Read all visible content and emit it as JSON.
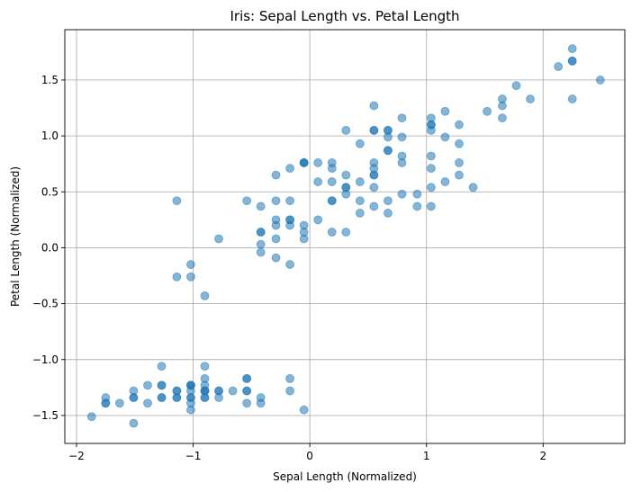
{
  "chart_data": {
    "type": "scatter",
    "title": "Iris: Sepal Length vs. Petal Length",
    "xlabel": "Sepal Length (Normalized)",
    "ylabel": "Petal Length (Normalized)",
    "xlim": [
      -2.1,
      2.7
    ],
    "ylim": [
      -1.75,
      1.95
    ],
    "x_ticks": [
      -2,
      -1,
      0,
      1,
      2
    ],
    "x_tick_labels": [
      "−2",
      "−1",
      "0",
      "1",
      "2"
    ],
    "y_ticks": [
      -1.5,
      -1.0,
      -0.5,
      0.0,
      0.5,
      1.0,
      1.5
    ],
    "y_tick_labels": [
      "−1.5",
      "−1.0",
      "−0.5",
      "0.0",
      "0.5",
      "1.0",
      "1.5"
    ],
    "grid": true,
    "marker_color": "#1f77b4",
    "marker_opacity": 0.55,
    "x": [
      -0.9,
      -1.14,
      -1.39,
      -1.51,
      -1.02,
      -0.54,
      -1.51,
      -1.02,
      -1.75,
      -1.14,
      -0.54,
      -1.27,
      -1.27,
      -1.87,
      -0.05,
      -0.17,
      -0.54,
      -0.9,
      -0.17,
      -0.9,
      -0.54,
      -0.9,
      -1.51,
      -0.9,
      -1.27,
      -1.02,
      -1.02,
      -0.78,
      -0.78,
      -1.39,
      -1.27,
      -0.54,
      -0.78,
      -0.42,
      -1.14,
      -1.02,
      -0.42,
      -1.14,
      -1.75,
      -0.9,
      -1.02,
      -1.63,
      -1.75,
      -1.02,
      -0.9,
      -1.27,
      -0.9,
      -1.51,
      -0.66,
      -1.02,
      1.4,
      0.67,
      1.28,
      -0.42,
      0.79,
      -0.17,
      0.55,
      -1.14,
      0.92,
      -0.78,
      -1.02,
      0.07,
      0.19,
      0.31,
      -0.29,
      1.04,
      -0.29,
      -0.05,
      0.43,
      -0.29,
      0.07,
      0.31,
      0.55,
      0.31,
      0.67,
      0.92,
      1.16,
      1.04,
      0.19,
      -0.17,
      -0.42,
      -0.42,
      -0.05,
      0.19,
      -0.54,
      0.19,
      1.04,
      0.55,
      -0.29,
      -0.42,
      -0.42,
      0.31,
      -0.05,
      -1.02,
      -0.29,
      -0.17,
      -0.17,
      0.43,
      -0.9,
      -0.17,
      0.55,
      -0.05,
      1.52,
      0.55,
      0.79,
      2.13,
      -1.14,
      1.77,
      1.04,
      1.65,
      0.79,
      0.67,
      1.16,
      -0.17,
      -0.05,
      0.67,
      0.79,
      2.25,
      2.25,
      0.19,
      1.28,
      -0.29,
      2.25,
      0.55,
      1.04,
      1.65,
      0.43,
      0.31,
      0.67,
      1.65,
      1.89,
      2.49,
      0.67,
      0.55,
      0.31,
      2.25,
      0.55,
      0.67,
      0.19,
      1.28,
      1.04,
      1.28,
      -0.05,
      1.16,
      1.04,
      1.04,
      0.55,
      0.79,
      0.43,
      0.07
    ],
    "y": [
      -1.34,
      -1.34,
      -1.39,
      -1.28,
      -1.34,
      -1.17,
      -1.34,
      -1.28,
      -1.34,
      -1.28,
      -1.28,
      -1.23,
      -1.34,
      -1.51,
      -1.45,
      -1.28,
      -1.39,
      -1.34,
      -1.17,
      -1.28,
      -1.17,
      -1.28,
      -1.57,
      -1.17,
      -1.06,
      -1.23,
      -1.23,
      -1.28,
      -1.34,
      -1.23,
      -1.23,
      -1.28,
      -1.28,
      -1.34,
      -1.28,
      -1.45,
      -1.39,
      -1.34,
      -1.39,
      -1.28,
      -1.39,
      -1.39,
      -1.39,
      -1.23,
      -1.06,
      -1.34,
      -1.23,
      -1.34,
      -1.28,
      -1.34,
      0.54,
      0.42,
      0.65,
      0.14,
      0.48,
      0.42,
      0.54,
      -0.26,
      0.48,
      0.08,
      -0.15,
      0.25,
      0.14,
      0.54,
      -0.09,
      0.37,
      0.42,
      0.2,
      0.42,
      0.08,
      0.59,
      0.14,
      0.65,
      0.54,
      0.31,
      0.37,
      0.59,
      0.71,
      0.42,
      -0.15,
      0.03,
      -0.04,
      0.08,
      0.76,
      0.42,
      0.42,
      0.54,
      0.37,
      0.2,
      0.14,
      0.37,
      0.48,
      0.14,
      -0.26,
      0.25,
      0.25,
      0.25,
      0.31,
      -0.43,
      0.2,
      1.27,
      0.76,
      1.22,
      1.05,
      1.16,
      1.62,
      0.42,
      1.45,
      1.16,
      1.33,
      0.76,
      0.87,
      0.99,
      0.71,
      0.76,
      0.87,
      0.99,
      1.67,
      1.78,
      0.71,
      1.1,
      0.65,
      1.67,
      0.65,
      1.1,
      1.27,
      0.59,
      0.65,
      1.05,
      1.16,
      1.33,
      1.5,
      1.05,
      0.76,
      1.05,
      1.33,
      1.05,
      0.99,
      0.59,
      0.93,
      1.05,
      0.76,
      0.76,
      1.22,
      1.1,
      0.82,
      0.71,
      0.82,
      0.93,
      0.76
    ]
  }
}
